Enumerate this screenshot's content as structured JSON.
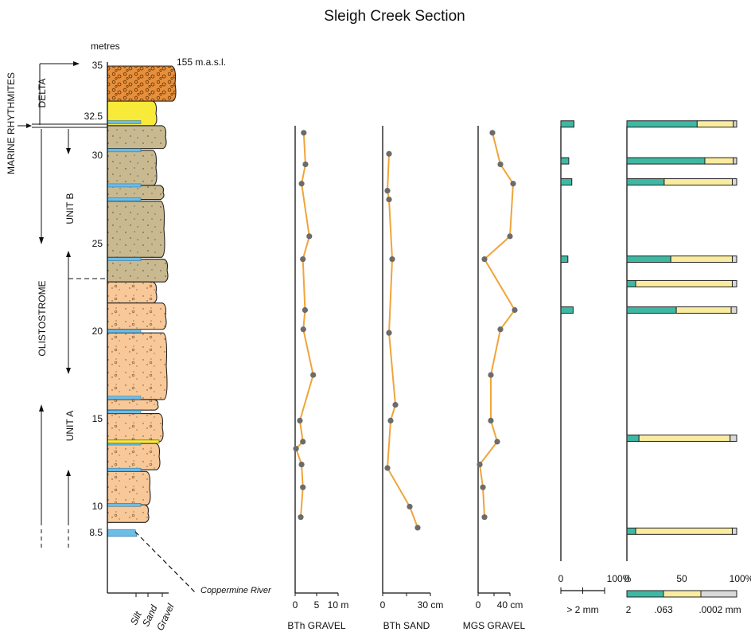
{
  "page": {
    "title": "Sleigh Creek Section",
    "depth_unit": "metres",
    "elevation_label": "155 m.a.s.l.",
    "depth_ticks": [
      "35",
      "32.5",
      "30",
      "25",
      "20",
      "15",
      "10",
      "8.5"
    ],
    "units": {
      "marine": "MARINE RHYTHMITES",
      "delta": "DELTA",
      "unit_b": "UNIT B",
      "olistostrome": "OLISTOSTROME",
      "unit_a": "UNIT A"
    },
    "location_label": "Coppermine River",
    "grain_labels": [
      "Silt",
      "Sand",
      "Gravel"
    ]
  },
  "colors": {
    "orange_line": "#f0a43a",
    "marker": "#6b6b6b",
    "silt": "#3fb8a3",
    "sand": "#f9eca0",
    "clay": "#d9d9d9",
    "diamict": "#f8c898",
    "unit_b_fill": "#c9b990",
    "delta_gravel": "#e88f3c",
    "delta_sand": "#f8ea38",
    "water_lens": "#6cbde8"
  },
  "chart_data": [
    {
      "type": "line",
      "title": "BTh GRAVEL",
      "xlabel": "BTh GRAVEL",
      "xunit": "m",
      "xlim": [
        0,
        10
      ],
      "xticks": [
        "0",
        "5",
        "10 m"
      ],
      "ylabel": "metres",
      "y": [
        31.2,
        29.4,
        28.3,
        25.3,
        24.0,
        21.1,
        20.0,
        17.4,
        14.8,
        13.6,
        13.2,
        12.3,
        11.0,
        9.3
      ],
      "x": [
        2.0,
        2.4,
        1.5,
        3.3,
        1.8,
        2.3,
        1.9,
        4.2,
        1.1,
        1.8,
        0.2,
        1.5,
        1.8,
        1.3
      ]
    },
    {
      "type": "line",
      "title": "BTh SAND",
      "xlabel": "BTh SAND",
      "xunit": "cm",
      "xlim": [
        0,
        30
      ],
      "xticks": [
        "0",
        "30 cm"
      ],
      "ylabel": "metres",
      "y": [
        30.0,
        27.9,
        27.4,
        24.0,
        19.8,
        15.7,
        14.8,
        12.1,
        9.9,
        8.7
      ],
      "x": [
        4,
        3,
        4,
        6,
        4,
        8,
        5,
        3,
        17,
        22
      ]
    },
    {
      "type": "line",
      "title": "MGS GRAVEL",
      "xlabel": "MGS GRAVEL",
      "xunit": "cm",
      "xlim": [
        0,
        40
      ],
      "xticks": [
        "0",
        "40 cm"
      ],
      "ylabel": "metres",
      "y": [
        31.2,
        29.4,
        28.3,
        25.3,
        24.0,
        21.1,
        20.0,
        17.4,
        14.8,
        13.6,
        12.3,
        11.0,
        9.3
      ],
      "x": [
        18,
        28,
        44,
        40,
        8,
        46,
        28,
        16,
        16,
        24,
        2,
        6,
        8
      ]
    },
    {
      "type": "bar",
      "title": "> 2 mm",
      "xlabel": "> 2 mm",
      "xunit": "%",
      "xlim": [
        0,
        100
      ],
      "xticks": [
        "0",
        "100%"
      ],
      "y": [
        31.7,
        29.6,
        28.4,
        24.0,
        21.1
      ],
      "values": [
        30,
        18,
        25,
        16,
        28
      ]
    },
    {
      "type": "bar",
      "title": "Grain size",
      "xunit": "%",
      "xlim": [
        0,
        100
      ],
      "xticks": [
        "0",
        "50",
        "100%"
      ],
      "legend_labels": [
        "2",
        ".063",
        ".0002 mm"
      ],
      "y": [
        31.7,
        29.6,
        28.4,
        24.0,
        22.6,
        21.1,
        13.8,
        8.5
      ],
      "series": [
        {
          "name": "2",
          "values": [
            64,
            71,
            34,
            40,
            8,
            45,
            11,
            8
          ]
        },
        {
          "name": ".063",
          "values": [
            33,
            26,
            62,
            56,
            88,
            50,
            83,
            88
          ]
        },
        {
          "name": ".0002 mm",
          "values": [
            3,
            3,
            4,
            4,
            4,
            5,
            6,
            4
          ]
        }
      ]
    }
  ]
}
